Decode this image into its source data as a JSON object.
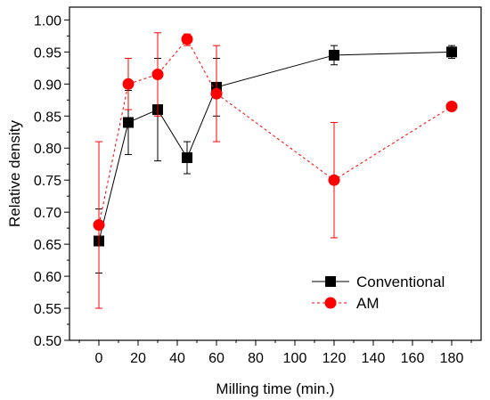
{
  "chart_data": {
    "type": "scatter",
    "xlabel": "Milling time (min.)",
    "ylabel": "Relative density",
    "xlim": [
      -15,
      195
    ],
    "ylim": [
      0.5,
      1.02
    ],
    "x_ticks": [
      0,
      20,
      40,
      60,
      80,
      100,
      120,
      140,
      160,
      180
    ],
    "y_ticks": [
      0.5,
      0.55,
      0.6,
      0.65,
      0.7,
      0.75,
      0.8,
      0.85,
      0.9,
      0.95,
      1.0
    ],
    "x_tick_labels": [
      "0",
      "20",
      "40",
      "60",
      "80",
      "100",
      "120",
      "140",
      "160",
      "180"
    ],
    "y_tick_labels": [
      "0.50",
      "0.55",
      "0.60",
      "0.65",
      "0.70",
      "0.75",
      "0.80",
      "0.85",
      "0.90",
      "0.95",
      "1.00"
    ],
    "grid": false,
    "legend_position": "bottom-right",
    "series": [
      {
        "name": "Conventional",
        "marker": "square",
        "line_style": "solid",
        "color": "#000000",
        "x": [
          0,
          15,
          30,
          45,
          60,
          120,
          180
        ],
        "y": [
          0.655,
          0.84,
          0.86,
          0.785,
          0.895,
          0.945,
          0.95
        ],
        "err_low": [
          0.605,
          0.79,
          0.78,
          0.76,
          0.85,
          0.93,
          0.94
        ],
        "err_high": [
          0.705,
          0.89,
          0.94,
          0.81,
          0.94,
          0.96,
          0.96
        ]
      },
      {
        "name": "AM",
        "marker": "circle",
        "line_style": "dashed",
        "color": "#ff0000",
        "x": [
          0,
          15,
          30,
          45,
          60,
          120,
          180
        ],
        "y": [
          0.68,
          0.9,
          0.915,
          0.97,
          0.885,
          0.75,
          0.865
        ],
        "err_low": [
          0.55,
          0.86,
          0.85,
          0.96,
          0.81,
          0.66,
          0.865
        ],
        "err_high": [
          0.81,
          0.94,
          0.98,
          0.978,
          0.96,
          0.84,
          0.865
        ]
      }
    ]
  }
}
